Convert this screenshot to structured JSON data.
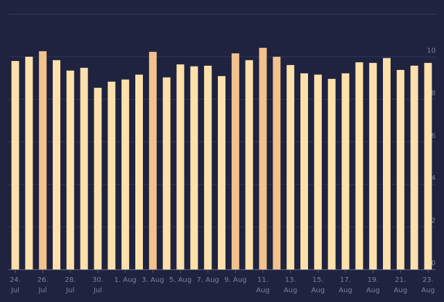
{
  "chart_data": {
    "type": "bar",
    "categories": [
      [
        "24.",
        "Jul"
      ],
      null,
      [
        "26.",
        "Jul"
      ],
      null,
      [
        "28.",
        "Jul"
      ],
      null,
      [
        "30.",
        "Jul"
      ],
      null,
      [
        "1. Aug"
      ],
      null,
      [
        "3. Aug"
      ],
      null,
      [
        "5. Aug"
      ],
      null,
      [
        "7. Aug"
      ],
      null,
      [
        "9. Aug"
      ],
      null,
      [
        "11.",
        "Aug"
      ],
      null,
      [
        "13.",
        "Aug"
      ],
      null,
      [
        "15.",
        "Aug"
      ],
      null,
      [
        "17.",
        "Aug"
      ],
      null,
      [
        "19.",
        "Aug"
      ],
      null,
      [
        "21.",
        "Aug"
      ],
      null,
      [
        "23.",
        "Aug"
      ]
    ],
    "values": [
      9.8,
      10.0,
      10.26,
      9.84,
      9.35,
      9.48,
      8.54,
      8.83,
      8.93,
      9.16,
      10.23,
      9.03,
      9.64,
      9.55,
      9.58,
      9.09,
      10.16,
      9.84,
      10.42,
      10.0,
      9.61,
      9.22,
      9.16,
      8.96,
      9.22,
      9.74,
      9.71,
      9.94,
      9.38,
      9.58,
      9.71
    ],
    "colors": [
      "#fde0aa",
      "#fde0aa",
      "#f3c18c",
      "#fde0aa",
      "#fde0aa",
      "#fde0aa",
      "#fde0aa",
      "#fde0aa",
      "#fde0aa",
      "#fde0aa",
      "#f3c18c",
      "#fde0aa",
      "#fde0aa",
      "#fde0aa",
      "#fde0aa",
      "#fde0aa",
      "#f3c18c",
      "#fde0aa",
      "#f3c18c",
      "#f3c18c",
      "#fde0aa",
      "#fde0aa",
      "#fde0aa",
      "#fde0aa",
      "#fde0aa",
      "#fde0aa",
      "#fde0aa",
      "#fde0aa",
      "#fde0aa",
      "#fde0aa",
      "#fde0aa"
    ],
    "ylim": [
      0,
      12
    ],
    "yticks": [
      0,
      2,
      4,
      6,
      8,
      10
    ],
    "grid": true
  }
}
